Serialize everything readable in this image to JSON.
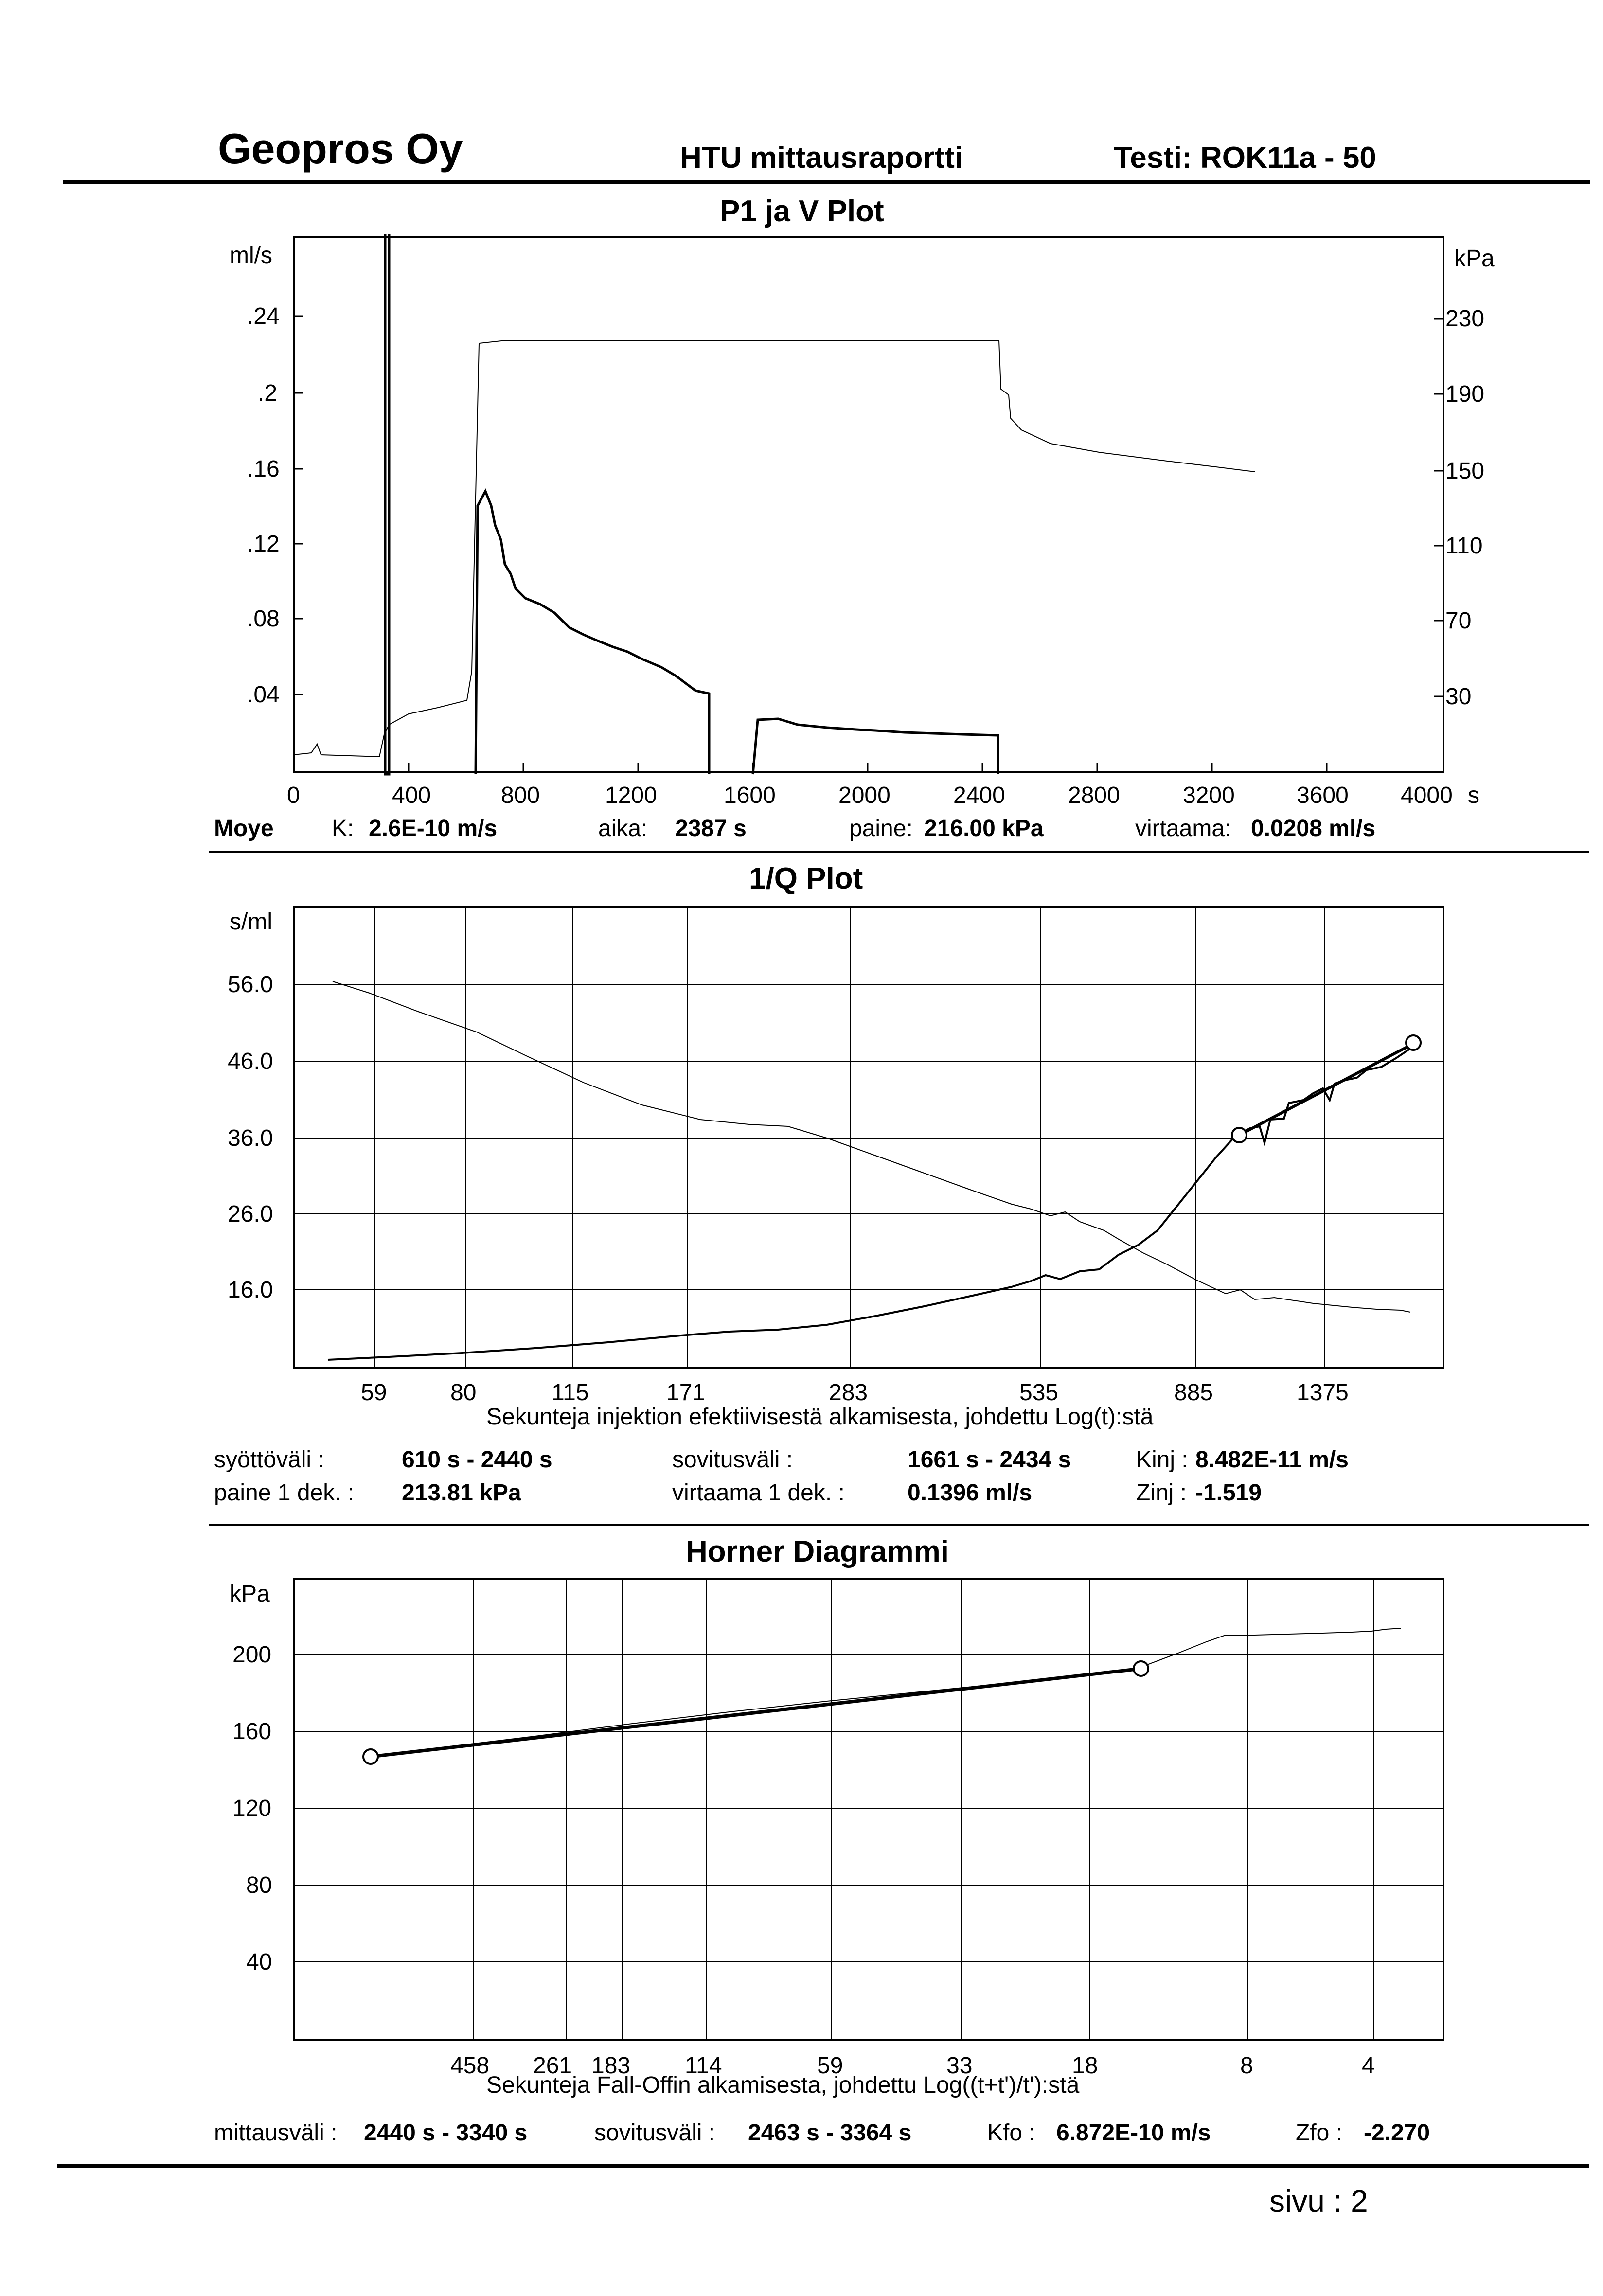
{
  "header": {
    "company": "Geopros Oy",
    "report": "HTU mittausraportti",
    "test": "Testi: ROK11a - 50"
  },
  "plot1": {
    "title": "P1 ja V Plot",
    "left_unit": "ml/s",
    "right_unit": "kPa",
    "x_unit": "s",
    "left_ticks": [
      ".24",
      ".2",
      ".16",
      ".12",
      ".08",
      ".04"
    ],
    "right_ticks": [
      "230",
      "190",
      "150",
      "110",
      "70",
      "30"
    ],
    "x_ticks": [
      "0",
      "400",
      "800",
      "1200",
      "1600",
      "2000",
      "2400",
      "2800",
      "3200",
      "3600",
      "4000"
    ]
  },
  "info1": {
    "name": "Moye",
    "k_label": "K:",
    "k_value": "2.6E-10 m/s",
    "aika_label": "aika:",
    "aika_value": "2387 s",
    "paine_label": "paine:",
    "paine_value": "216.00 kPa",
    "virtaama_label": "virtaama:",
    "virtaama_value": "0.0208 ml/s"
  },
  "plot2": {
    "title": "1/Q Plot",
    "y_unit": "s/ml",
    "y_ticks": [
      "56.0",
      "46.0",
      "36.0",
      "26.0",
      "16.0"
    ],
    "x_ticks": [
      "59",
      "80",
      "115",
      "171",
      "283",
      "535",
      "885",
      "1375"
    ],
    "x_label": "Sekunteja injektion efektiivisestä alkamisesta, johdettu Log(t):stä"
  },
  "info2": {
    "syotto_label": "syöttöväli :",
    "syotto_value": "610 s - 2440 s",
    "sovitus_label": "sovitusväli :",
    "sovitus_value": "1661 s - 2434 s",
    "kinj_label": "Kinj :",
    "kinj_value": "8.482E-11 m/s",
    "paine_label": "paine 1 dek. :",
    "paine_value": "213.81 kPa",
    "virtaama_label": "virtaama 1 dek. :",
    "virtaama_value": "0.1396 ml/s",
    "zinj_label": "Zinj :",
    "zinj_value": "-1.519"
  },
  "plot3": {
    "title": "Horner Diagrammi",
    "y_unit": "kPa",
    "y_ticks": [
      "200",
      "160",
      "120",
      "80",
      "40"
    ],
    "x_ticks": [
      "458",
      "261",
      "183",
      "114",
      "59",
      "33",
      "18",
      "8",
      "4"
    ],
    "x_label": "Sekunteja Fall-Offin alkamisesta, johdettu Log((t+t')/t'):stä"
  },
  "info3": {
    "mittaus_label": "mittausväli :",
    "mittaus_value": "2440 s - 3340 s",
    "sovitus_label": "sovitusväli :",
    "sovitus_value": "2463 s - 3364 s",
    "kfo_label": "Kfo :",
    "kfo_value": "6.872E-10 m/s",
    "zfo_label": "Zfo :",
    "zfo_value": "-2.270"
  },
  "footer": {
    "page": "sivu :  2"
  }
}
